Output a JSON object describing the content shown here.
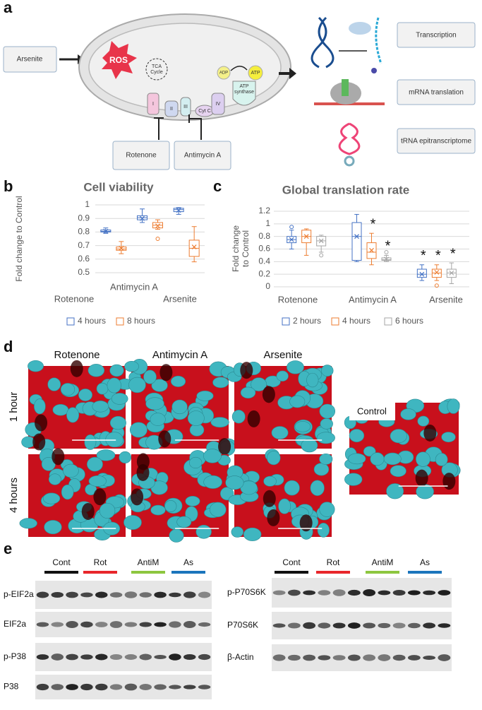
{
  "panel_labels": [
    "a",
    "b",
    "c",
    "d",
    "e"
  ],
  "diagram": {
    "arsenite": "Arsenite",
    "ros": "ROS",
    "rotenone": "Rotenone",
    "antimycin": "Antimycin A",
    "tca": [
      "TCA",
      "Cycle"
    ],
    "complex_1": "I",
    "complex_2": "II",
    "complex_3": "III",
    "cyt_c": "Cyt C",
    "complex_4": "IV",
    "atp_synthase": [
      "ATP",
      "synthase"
    ],
    "adp": "ADP",
    "atp": "ATP",
    "outputs": [
      "Transcription",
      "mRNA translation",
      "tRNA epitranscriptome"
    ]
  },
  "chart_data": [
    {
      "type": "box",
      "title": "Cell viability",
      "y_label": "Fold change to Control",
      "categories": [
        "Rotenone",
        "Antimycin A",
        "Arsenite"
      ],
      "ylim": [
        0.5,
        1
      ],
      "yticks": [
        0.5,
        0.6,
        0.7,
        0.8,
        0.9,
        1
      ],
      "grid": true,
      "series": [
        {
          "name": "4 hours",
          "color": "#4472c4",
          "min": [
            0.79,
            0.87,
            0.93
          ],
          "q1": [
            0.8,
            0.89,
            0.95
          ],
          "median": [
            0.805,
            0.905,
            0.965
          ],
          "q3": [
            0.815,
            0.92,
            0.975
          ],
          "max": [
            0.83,
            0.97,
            0.98
          ],
          "mean": [
            0.805,
            0.9,
            0.96
          ],
          "outliers": [
            [],
            [],
            []
          ],
          "annotations": [
            null,
            null,
            null
          ]
        },
        {
          "name": "8 hours",
          "color": "#ed7d31",
          "min": [
            0.64,
            0.82,
            0.58
          ],
          "q1": [
            0.665,
            0.83,
            0.62
          ],
          "median": [
            0.675,
            0.85,
            0.68
          ],
          "q3": [
            0.69,
            0.87,
            0.74
          ],
          "max": [
            0.73,
            0.89,
            0.84
          ],
          "mean": [
            0.68,
            0.845,
            0.69
          ],
          "outliers": [
            [],
            [
              0.75
            ],
            []
          ],
          "annotations": [
            null,
            null,
            null
          ]
        }
      ]
    },
    {
      "type": "box",
      "title": "Global translation rate",
      "y_label": [
        "Fold change",
        "to Control"
      ],
      "categories": [
        "Rotenone",
        "Antimycin A",
        "Arsenite"
      ],
      "ylim": [
        0,
        1.2
      ],
      "yticks": [
        0,
        0.2,
        0.4,
        0.6,
        0.8,
        1,
        1.2
      ],
      "grid": true,
      "series": [
        {
          "name": "2 hours",
          "color": "#4472c4",
          "min": [
            0.6,
            0.4,
            0.1
          ],
          "q1": [
            0.7,
            0.42,
            0.15
          ],
          "median": [
            0.75,
            0.8,
            0.2
          ],
          "q3": [
            0.8,
            1.02,
            0.28
          ],
          "max": [
            0.9,
            1.15,
            0.35
          ],
          "mean": [
            0.75,
            0.8,
            0.2
          ],
          "outliers": [
            [
              0.95
            ],
            [],
            []
          ],
          "annotations": [
            null,
            null,
            "*"
          ]
        },
        {
          "name": "4 hours",
          "color": "#ed7d31",
          "min": [
            0.5,
            0.35,
            0.1
          ],
          "q1": [
            0.7,
            0.45,
            0.15
          ],
          "median": [
            0.8,
            0.55,
            0.22
          ],
          "q3": [
            0.9,
            0.7,
            0.28
          ],
          "max": [
            0.92,
            0.85,
            0.35
          ],
          "mean": [
            0.8,
            0.58,
            0.23
          ],
          "outliers": [
            [],
            [],
            [
              0.02
            ]
          ],
          "annotations": [
            null,
            "*",
            "*"
          ]
        },
        {
          "name": "6 hours",
          "color": "#a5a5a5",
          "min": [
            0.55,
            0.4,
            0.05
          ],
          "q1": [
            0.65,
            0.42,
            0.15
          ],
          "median": [
            0.73,
            0.43,
            0.22
          ],
          "q3": [
            0.8,
            0.46,
            0.28
          ],
          "max": [
            0.82,
            0.5,
            0.38
          ],
          "mean": [
            0.73,
            0.44,
            0.22
          ],
          "outliers": [
            [
              0.5
            ],
            [
              0.55
            ],
            []
          ],
          "annotations": [
            null,
            "*",
            "*"
          ]
        }
      ]
    }
  ],
  "imaging": {
    "columns": [
      "Rotenone",
      "Antimycin A",
      "Arsenite"
    ],
    "rows": [
      "1 hour",
      "4 hours"
    ],
    "control": "Control"
  },
  "blots": {
    "left": {
      "groups": [
        "Cont",
        "Rot",
        "AntiM",
        "As"
      ],
      "proteins": [
        "p-EIF2a",
        "EIF2a",
        "p-P38",
        "P38"
      ]
    },
    "right": {
      "groups": [
        "Cont",
        "Rot",
        "AntiM",
        "As"
      ],
      "proteins": [
        "p-P70S6K",
        "P70S6K",
        "β-Actin"
      ]
    },
    "group_colors": [
      "#111111",
      "#e8262b",
      "#8dc63f",
      "#1b75bc"
    ]
  }
}
